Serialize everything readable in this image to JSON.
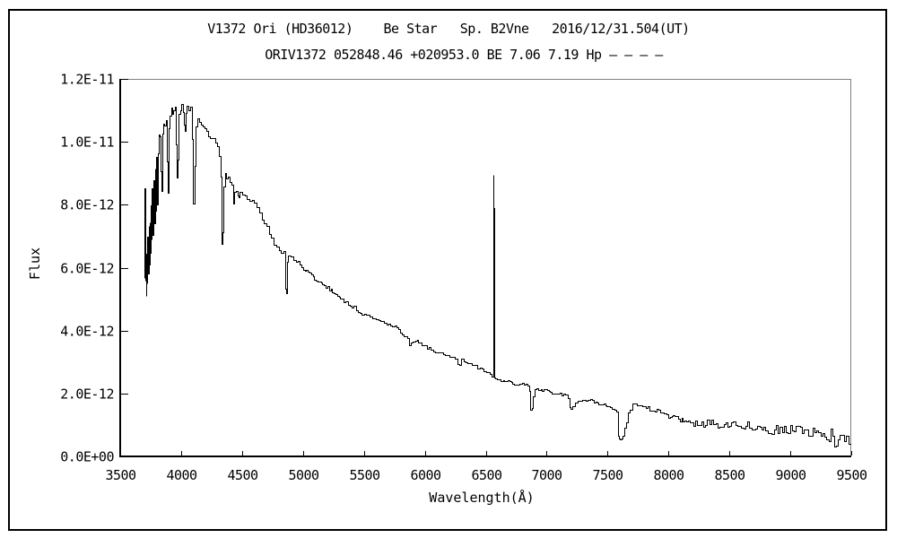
{
  "chart_data": {
    "type": "line",
    "title": "V1372 Ori (HD36012)    Be Star   Sp. B2Vne   2016/12/31.504(UT)",
    "subtitle": "ORIV1372 052848.46 +020953.0 BE 7.06 7.19 Hp – – – –",
    "xlabel": "Wavelength(Å)",
    "ylabel": "Flux",
    "xlim": [
      3500,
      9500
    ],
    "ylim": [
      0,
      1.2e-11
    ],
    "grid": false,
    "legend": "none",
    "x_ticks": [
      3500,
      4000,
      4500,
      5000,
      5500,
      6000,
      6500,
      7000,
      7500,
      8000,
      8500,
      9000,
      9500
    ],
    "y_ticks": [
      {
        "label": "0.0E+00",
        "value": 0
      },
      {
        "label": "2.0E-12",
        "value": 2e-12
      },
      {
        "label": "4.0E-12",
        "value": 4e-12
      },
      {
        "label": "6.0E-12",
        "value": 6e-12
      },
      {
        "label": "8.0E-12",
        "value": 8e-12
      },
      {
        "label": "1.0E-11",
        "value": 1e-11
      },
      {
        "label": "1.2E-11",
        "value": 1.2e-11
      }
    ],
    "colors": {
      "line": "#000000",
      "axis": "#000000",
      "box_top_right": "#808080",
      "text": "#000000",
      "bg": "#ffffff"
    },
    "noise_seed": 3,
    "noise_segments": [
      [
        3700,
        3960,
        1.8e-13
      ],
      [
        3960,
        4850,
        9e-14
      ],
      [
        4850,
        5800,
        6e-14
      ],
      [
        5800,
        6540,
        5e-14
      ],
      [
        6575,
        7560,
        4.5e-14
      ],
      [
        7560,
        8150,
        9e-14
      ],
      [
        8150,
        8800,
        1.3e-13
      ],
      [
        8800,
        9280,
        1.8e-13
      ],
      [
        9280,
        9550,
        3.3e-13
      ]
    ],
    "points": [
      [
        3700,
        5.6e-12
      ],
      [
        3702,
        8.7e-12
      ],
      [
        3705,
        5.6e-12
      ],
      [
        3708,
        6.6e-12
      ],
      [
        3712,
        5e-12
      ],
      [
        3716,
        6.3e-12
      ],
      [
        3720,
        5.5e-12
      ],
      [
        3724,
        7.1e-12
      ],
      [
        3728,
        5.9e-12
      ],
      [
        3732,
        7.3e-12
      ],
      [
        3736,
        6.2e-12
      ],
      [
        3740,
        7.6e-12
      ],
      [
        3745,
        6.4e-12
      ],
      [
        3750,
        8e-12
      ],
      [
        3755,
        6.8e-12
      ],
      [
        3760,
        8.4e-12
      ],
      [
        3766,
        7.1e-12
      ],
      [
        3772,
        8.7e-12
      ],
      [
        3778,
        7.5e-12
      ],
      [
        3784,
        9.1e-12
      ],
      [
        3790,
        7.8e-12
      ],
      [
        3796,
        9.4e-12
      ],
      [
        3800,
        8e-12
      ],
      [
        3806,
        9.8e-12
      ],
      [
        3814,
        1.01e-11
      ],
      [
        3822,
        1.025e-11
      ],
      [
        3830,
        8.9e-12
      ],
      [
        3836,
        8.35e-12
      ],
      [
        3844,
        1.03e-11
      ],
      [
        3852,
        1.05e-11
      ],
      [
        3862,
        1.065e-11
      ],
      [
        3872,
        1.075e-11
      ],
      [
        3882,
        9.3e-12
      ],
      [
        3890,
        8.55e-12
      ],
      [
        3898,
        1.06e-11
      ],
      [
        3908,
        1.085e-11
      ],
      [
        3918,
        1.095e-11
      ],
      [
        3928,
        1.085e-11
      ],
      [
        3938,
        1.095e-11
      ],
      [
        3948,
        1.1e-11
      ],
      [
        3958,
        9.9e-12
      ],
      [
        3966,
        8.85e-12
      ],
      [
        3974,
        9.5e-12
      ],
      [
        3982,
        1.09e-11
      ],
      [
        3992,
        1.1e-11
      ],
      [
        4002,
        1.115e-11
      ],
      [
        4012,
        1.095e-11
      ],
      [
        4022,
        1.055e-11
      ],
      [
        4028,
        1.035e-11
      ],
      [
        4036,
        1.09e-11
      ],
      [
        4048,
        1.11e-11
      ],
      [
        4062,
        1.095e-11
      ],
      [
        4076,
        1.11e-11
      ],
      [
        4090,
        1.01e-11
      ],
      [
        4099,
        8e-12
      ],
      [
        4108,
        9.2e-12
      ],
      [
        4118,
        1.05e-11
      ],
      [
        4130,
        1.065e-11
      ],
      [
        4145,
        1.055e-11
      ],
      [
        4160,
        1.05e-11
      ],
      [
        4175,
        1.045e-11
      ],
      [
        4190,
        1.035e-11
      ],
      [
        4205,
        1.03e-11
      ],
      [
        4220,
        1.025e-11
      ],
      [
        4235,
        1.02e-11
      ],
      [
        4250,
        1.01e-11
      ],
      [
        4265,
        1.005e-11
      ],
      [
        4280,
        1e-11
      ],
      [
        4295,
        9.85e-12
      ],
      [
        4310,
        9.6e-12
      ],
      [
        4322,
        8.9e-12
      ],
      [
        4333,
        6.75e-12
      ],
      [
        4342,
        7.1e-12
      ],
      [
        4350,
        8.6e-12
      ],
      [
        4360,
        8.95e-12
      ],
      [
        4372,
        8.9e-12
      ],
      [
        4386,
        8.8e-12
      ],
      [
        4400,
        8.7e-12
      ],
      [
        4414,
        8.6e-12
      ],
      [
        4428,
        8e-12
      ],
      [
        4438,
        8.5e-12
      ],
      [
        4452,
        8.45e-12
      ],
      [
        4466,
        8.35e-12
      ],
      [
        4474,
        8.2e-12
      ],
      [
        4482,
        8.35e-12
      ],
      [
        4500,
        8.3e-12
      ],
      [
        4520,
        8.2e-12
      ],
      [
        4540,
        8.1e-12
      ],
      [
        4560,
        8.05e-12
      ],
      [
        4580,
        8.15e-12
      ],
      [
        4600,
        8e-12
      ],
      [
        4620,
        7.85e-12
      ],
      [
        4640,
        7.7e-12
      ],
      [
        4660,
        7.55e-12
      ],
      [
        4680,
        7.4e-12
      ],
      [
        4700,
        7.25e-12
      ],
      [
        4720,
        7.1e-12
      ],
      [
        4740,
        6.95e-12
      ],
      [
        4760,
        6.8e-12
      ],
      [
        4780,
        6.65e-12
      ],
      [
        4800,
        6.55e-12
      ],
      [
        4820,
        6.5e-12
      ],
      [
        4840,
        6.45e-12
      ],
      [
        4852,
        6.3e-12
      ],
      [
        4858,
        5.3e-12
      ],
      [
        4864,
        5.25e-12
      ],
      [
        4870,
        6.2e-12
      ],
      [
        4878,
        6.35e-12
      ],
      [
        4890,
        6.45e-12
      ],
      [
        4900,
        6.35e-12
      ],
      [
        4920,
        6.3e-12
      ],
      [
        4944,
        6.2e-12
      ],
      [
        4970,
        6.1e-12
      ],
      [
        5000,
        6e-12
      ],
      [
        5040,
        5.85e-12
      ],
      [
        5080,
        5.7e-12
      ],
      [
        5120,
        5.6e-12
      ],
      [
        5160,
        5.45e-12
      ],
      [
        5200,
        5.35e-12
      ],
      [
        5240,
        5.25e-12
      ],
      [
        5280,
        5.1e-12
      ],
      [
        5320,
        5e-12
      ],
      [
        5360,
        4.9e-12
      ],
      [
        5400,
        4.75e-12
      ],
      [
        5450,
        4.65e-12
      ],
      [
        5500,
        4.5e-12
      ],
      [
        5550,
        4.45e-12
      ],
      [
        5600,
        4.4e-12
      ],
      [
        5650,
        4.32e-12
      ],
      [
        5700,
        4.22e-12
      ],
      [
        5750,
        4.1e-12
      ],
      [
        5800,
        3.95e-12
      ],
      [
        5830,
        3.85e-12
      ],
      [
        5855,
        3.78e-12
      ],
      [
        5872,
        3.5e-12
      ],
      [
        5886,
        3.68e-12
      ],
      [
        5920,
        3.68e-12
      ],
      [
        5960,
        3.6e-12
      ],
      [
        6000,
        3.5e-12
      ],
      [
        6050,
        3.4e-12
      ],
      [
        6100,
        3.32e-12
      ],
      [
        6150,
        3.25e-12
      ],
      [
        6200,
        3.15e-12
      ],
      [
        6245,
        3.1e-12
      ],
      [
        6268,
        2.95e-12
      ],
      [
        6282,
        2.9e-12
      ],
      [
        6300,
        3.05e-12
      ],
      [
        6350,
        3e-12
      ],
      [
        6400,
        2.9e-12
      ],
      [
        6450,
        2.8e-12
      ],
      [
        6500,
        2.7e-12
      ],
      [
        6530,
        2.6e-12
      ],
      [
        6550,
        2.55e-12
      ],
      [
        6558,
        2.55e-12
      ],
      [
        6561,
        8.95e-12
      ],
      [
        6564,
        7.9e-12
      ],
      [
        6567,
        2.8e-12
      ],
      [
        6572,
        2.5e-12
      ],
      [
        6580,
        2.45e-12
      ],
      [
        6610,
        2.45e-12
      ],
      [
        6640,
        2.4e-12
      ],
      [
        6680,
        2.38e-12
      ],
      [
        6720,
        2.33e-12
      ],
      [
        6760,
        2.3e-12
      ],
      [
        6800,
        2.3e-12
      ],
      [
        6840,
        2.27e-12
      ],
      [
        6856,
        2.05e-12
      ],
      [
        6866,
        1.5e-12
      ],
      [
        6876,
        1.55e-12
      ],
      [
        6886,
        1.9e-12
      ],
      [
        6898,
        2.1e-12
      ],
      [
        6915,
        2.15e-12
      ],
      [
        6950,
        2.12e-12
      ],
      [
        6990,
        2.1e-12
      ],
      [
        7030,
        2.05e-12
      ],
      [
        7070,
        2e-12
      ],
      [
        7110,
        2e-12
      ],
      [
        7150,
        1.95e-12
      ],
      [
        7172,
        1.85e-12
      ],
      [
        7188,
        1.55e-12
      ],
      [
        7198,
        1.48e-12
      ],
      [
        7212,
        1.56e-12
      ],
      [
        7235,
        1.66e-12
      ],
      [
        7258,
        1.75e-12
      ],
      [
        7280,
        1.8e-12
      ],
      [
        7320,
        1.8e-12
      ],
      [
        7360,
        1.78e-12
      ],
      [
        7400,
        1.73e-12
      ],
      [
        7440,
        1.68e-12
      ],
      [
        7480,
        1.63e-12
      ],
      [
        7520,
        1.58e-12
      ],
      [
        7555,
        1.52e-12
      ],
      [
        7572,
        1.45e-12
      ],
      [
        7583,
        7.5e-13
      ],
      [
        7594,
        6e-13
      ],
      [
        7604,
        6.2e-13
      ],
      [
        7614,
        6e-13
      ],
      [
        7624,
        6.8e-13
      ],
      [
        7638,
        8.5e-13
      ],
      [
        7652,
        1.1e-12
      ],
      [
        7668,
        1.35e-12
      ],
      [
        7684,
        1.5e-12
      ],
      [
        7700,
        1.58e-12
      ],
      [
        7725,
        1.6e-12
      ],
      [
        7755,
        1.58e-12
      ],
      [
        7785,
        1.55e-12
      ],
      [
        7815,
        1.55e-12
      ],
      [
        7845,
        1.5e-12
      ],
      [
        7875,
        1.48e-12
      ],
      [
        7905,
        1.45e-12
      ],
      [
        7935,
        1.42e-12
      ],
      [
        7965,
        1.38e-12
      ],
      [
        7995,
        1.31e-12
      ],
      [
        8025,
        1.28e-12
      ],
      [
        8065,
        1.22e-12
      ],
      [
        8105,
        1.18e-12
      ],
      [
        8145,
        1.12e-12
      ],
      [
        8190,
        1.06e-12
      ],
      [
        8235,
        1.05e-12
      ],
      [
        8285,
        1.05e-12
      ],
      [
        8335,
        1.08e-12
      ],
      [
        8385,
        1.05e-12
      ],
      [
        8435,
        1.03e-12
      ],
      [
        8485,
        1.05e-12
      ],
      [
        8530,
        1.03e-12
      ],
      [
        8580,
        1.02e-12
      ],
      [
        8630,
        1e-12
      ],
      [
        8680,
        9.7e-13
      ],
      [
        8730,
        9.4e-13
      ],
      [
        8780,
        9.2e-13
      ],
      [
        8830,
        9e-13
      ],
      [
        8880,
        8.9e-13
      ],
      [
        8930,
        8.8e-13
      ],
      [
        8980,
        8.8e-13
      ],
      [
        9030,
        8.6e-13
      ],
      [
        9080,
        8.2e-13
      ],
      [
        9130,
        7.7e-13
      ],
      [
        9180,
        7.3e-13
      ],
      [
        9230,
        7.1e-13
      ],
      [
        9280,
        6.8e-13
      ],
      [
        9330,
        6.2e-13
      ],
      [
        9375,
        5.8e-13
      ],
      [
        9420,
        5.5e-13
      ],
      [
        9455,
        5e-13
      ],
      [
        9480,
        5.8e-13
      ],
      [
        9500,
        4.8e-13
      ],
      [
        9508,
        1.74e-12
      ],
      [
        9515,
        5e-13
      ]
    ]
  }
}
